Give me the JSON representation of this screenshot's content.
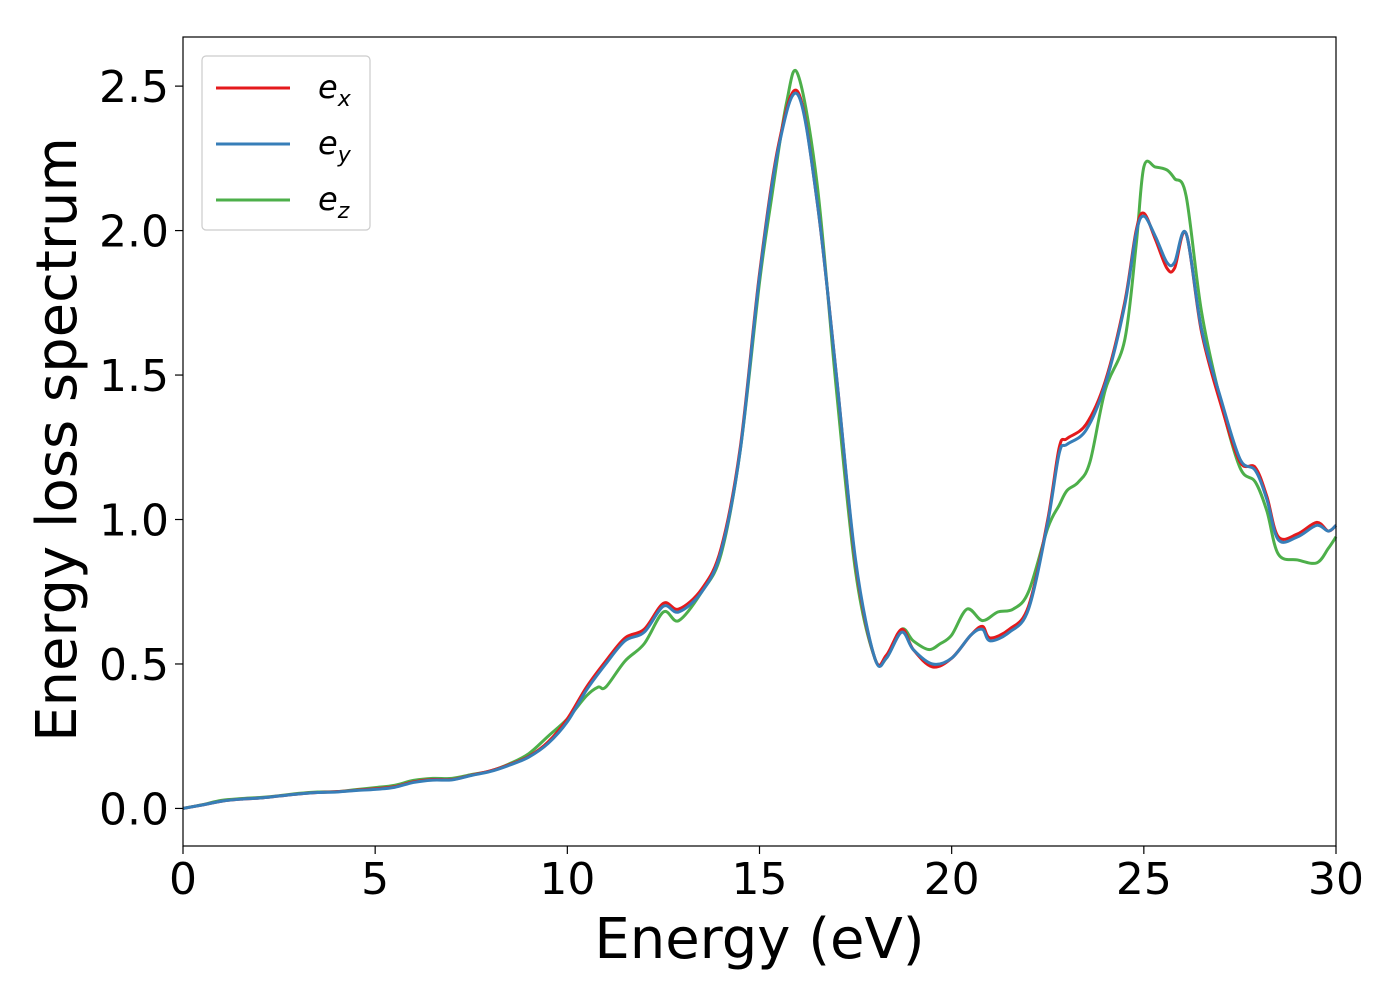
{
  "chart_data": {
    "type": "line",
    "title": "",
    "xlabel": "Energy (eV)",
    "ylabel": "Energy loss spectrum",
    "xlim": [
      0,
      30
    ],
    "ylim": [
      -0.13,
      2.67
    ],
    "xticks": [
      0,
      5,
      10,
      15,
      20,
      25,
      30
    ],
    "xtick_labels": [
      "0",
      "5",
      "10",
      "15",
      "20",
      "25",
      "30"
    ],
    "yticks": [
      0.0,
      0.5,
      1.0,
      1.5,
      2.0,
      2.5
    ],
    "ytick_labels": [
      "0.0",
      "0.5",
      "1.0",
      "1.5",
      "2.0",
      "2.5"
    ],
    "grid": false,
    "legend": {
      "placement": "top-left"
    },
    "series": [
      {
        "name": "e_x",
        "label_base": "e",
        "label_sub": "x",
        "color": "#e41a1c",
        "x": [
          0,
          0.5,
          1,
          1.5,
          2,
          2.5,
          3,
          3.5,
          4,
          4.5,
          5,
          5.5,
          6,
          6.5,
          7,
          7.5,
          8,
          8.5,
          9,
          9.5,
          10,
          10.5,
          11,
          11.5,
          12,
          12.5,
          12.9,
          13.5,
          14,
          14.5,
          15,
          15.5,
          16,
          16.5,
          17,
          17.5,
          18,
          18.3,
          18.7,
          19,
          19.5,
          20,
          20.5,
          20.8,
          21,
          21.5,
          22,
          22.5,
          22.8,
          23,
          23.5,
          24,
          24.5,
          24.8,
          25,
          25.3,
          25.6,
          25.8,
          26.1,
          26.5,
          27,
          27.5,
          27.9,
          28.2,
          28.5,
          29,
          29.5,
          29.8,
          30
        ],
        "y": [
          0.0,
          0.012,
          0.025,
          0.032,
          0.036,
          0.043,
          0.05,
          0.055,
          0.058,
          0.063,
          0.068,
          0.075,
          0.092,
          0.1,
          0.1,
          0.115,
          0.13,
          0.152,
          0.18,
          0.23,
          0.31,
          0.42,
          0.51,
          0.59,
          0.62,
          0.71,
          0.69,
          0.76,
          0.9,
          1.25,
          1.85,
          2.3,
          2.48,
          2.1,
          1.5,
          0.85,
          0.52,
          0.53,
          0.62,
          0.55,
          0.49,
          0.52,
          0.6,
          0.63,
          0.59,
          0.62,
          0.7,
          1.0,
          1.25,
          1.28,
          1.33,
          1.48,
          1.75,
          2.0,
          2.06,
          1.97,
          1.87,
          1.87,
          1.99,
          1.65,
          1.4,
          1.2,
          1.18,
          1.08,
          0.94,
          0.95,
          0.99,
          0.96,
          0.98
        ]
      },
      {
        "name": "e_y",
        "label_base": "e",
        "label_sub": "y",
        "color": "#377eb8",
        "x": [
          0,
          0.5,
          1,
          1.5,
          2,
          2.5,
          3,
          3.5,
          4,
          4.5,
          5,
          5.5,
          6,
          6.5,
          7,
          7.5,
          8,
          8.5,
          9,
          9.5,
          10,
          10.5,
          11,
          11.5,
          12,
          12.5,
          12.9,
          13.5,
          14,
          14.5,
          15,
          15.5,
          16,
          16.5,
          17,
          17.5,
          18,
          18.3,
          18.7,
          19,
          19.5,
          20,
          20.5,
          20.8,
          21,
          21.5,
          22,
          22.5,
          22.8,
          23,
          23.5,
          24,
          24.5,
          24.8,
          25,
          25.3,
          25.6,
          25.8,
          26.1,
          26.5,
          27,
          27.5,
          27.9,
          28.2,
          28.5,
          29,
          29.5,
          29.8,
          30
        ],
        "y": [
          0.0,
          0.012,
          0.025,
          0.032,
          0.036,
          0.043,
          0.05,
          0.055,
          0.057,
          0.062,
          0.066,
          0.073,
          0.09,
          0.098,
          0.099,
          0.114,
          0.128,
          0.15,
          0.178,
          0.225,
          0.3,
          0.41,
          0.5,
          0.58,
          0.61,
          0.7,
          0.68,
          0.75,
          0.89,
          1.24,
          1.84,
          2.29,
          2.47,
          2.1,
          1.5,
          0.86,
          0.52,
          0.52,
          0.61,
          0.55,
          0.5,
          0.52,
          0.6,
          0.62,
          0.58,
          0.61,
          0.69,
          0.99,
          1.23,
          1.26,
          1.31,
          1.47,
          1.74,
          1.99,
          2.05,
          1.98,
          1.89,
          1.89,
          1.99,
          1.66,
          1.42,
          1.21,
          1.17,
          1.07,
          0.93,
          0.94,
          0.98,
          0.96,
          0.98
        ]
      },
      {
        "name": "e_z",
        "label_base": "e",
        "label_sub": "z",
        "color": "#4daf4a",
        "x": [
          0,
          0.5,
          1,
          1.5,
          2,
          2.5,
          3,
          3.5,
          4,
          4.5,
          5,
          5.5,
          6,
          6.5,
          7,
          7.5,
          8,
          8.5,
          9,
          9.5,
          10,
          10.5,
          10.8,
          11,
          11.5,
          12,
          12.5,
          12.9,
          13.5,
          14,
          14.5,
          15,
          15.3,
          15.7,
          16,
          16.5,
          17,
          17.5,
          18,
          18.3,
          18.7,
          19,
          19.4,
          19.7,
          20,
          20.4,
          20.8,
          21.2,
          21.6,
          22,
          22.5,
          22.8,
          23,
          23.3,
          23.6,
          24,
          24.5,
          24.8,
          25,
          25.3,
          25.6,
          25.8,
          26.1,
          26.5,
          27,
          27.5,
          27.9,
          28.2,
          28.5,
          29,
          29.5,
          29.8,
          30
        ],
        "y": [
          0.0,
          0.013,
          0.028,
          0.034,
          0.038,
          0.044,
          0.052,
          0.057,
          0.058,
          0.065,
          0.072,
          0.08,
          0.097,
          0.104,
          0.104,
          0.117,
          0.13,
          0.155,
          0.19,
          0.25,
          0.31,
          0.39,
          0.42,
          0.42,
          0.51,
          0.57,
          0.68,
          0.65,
          0.75,
          0.88,
          1.24,
          1.82,
          2.1,
          2.44,
          2.54,
          2.16,
          1.45,
          0.82,
          0.52,
          0.52,
          0.62,
          0.58,
          0.55,
          0.57,
          0.6,
          0.69,
          0.65,
          0.68,
          0.69,
          0.75,
          0.97,
          1.05,
          1.1,
          1.13,
          1.2,
          1.45,
          1.62,
          1.95,
          2.22,
          2.22,
          2.21,
          2.18,
          2.12,
          1.72,
          1.41,
          1.18,
          1.13,
          1.03,
          0.88,
          0.86,
          0.85,
          0.9,
          0.94
        ]
      }
    ]
  }
}
